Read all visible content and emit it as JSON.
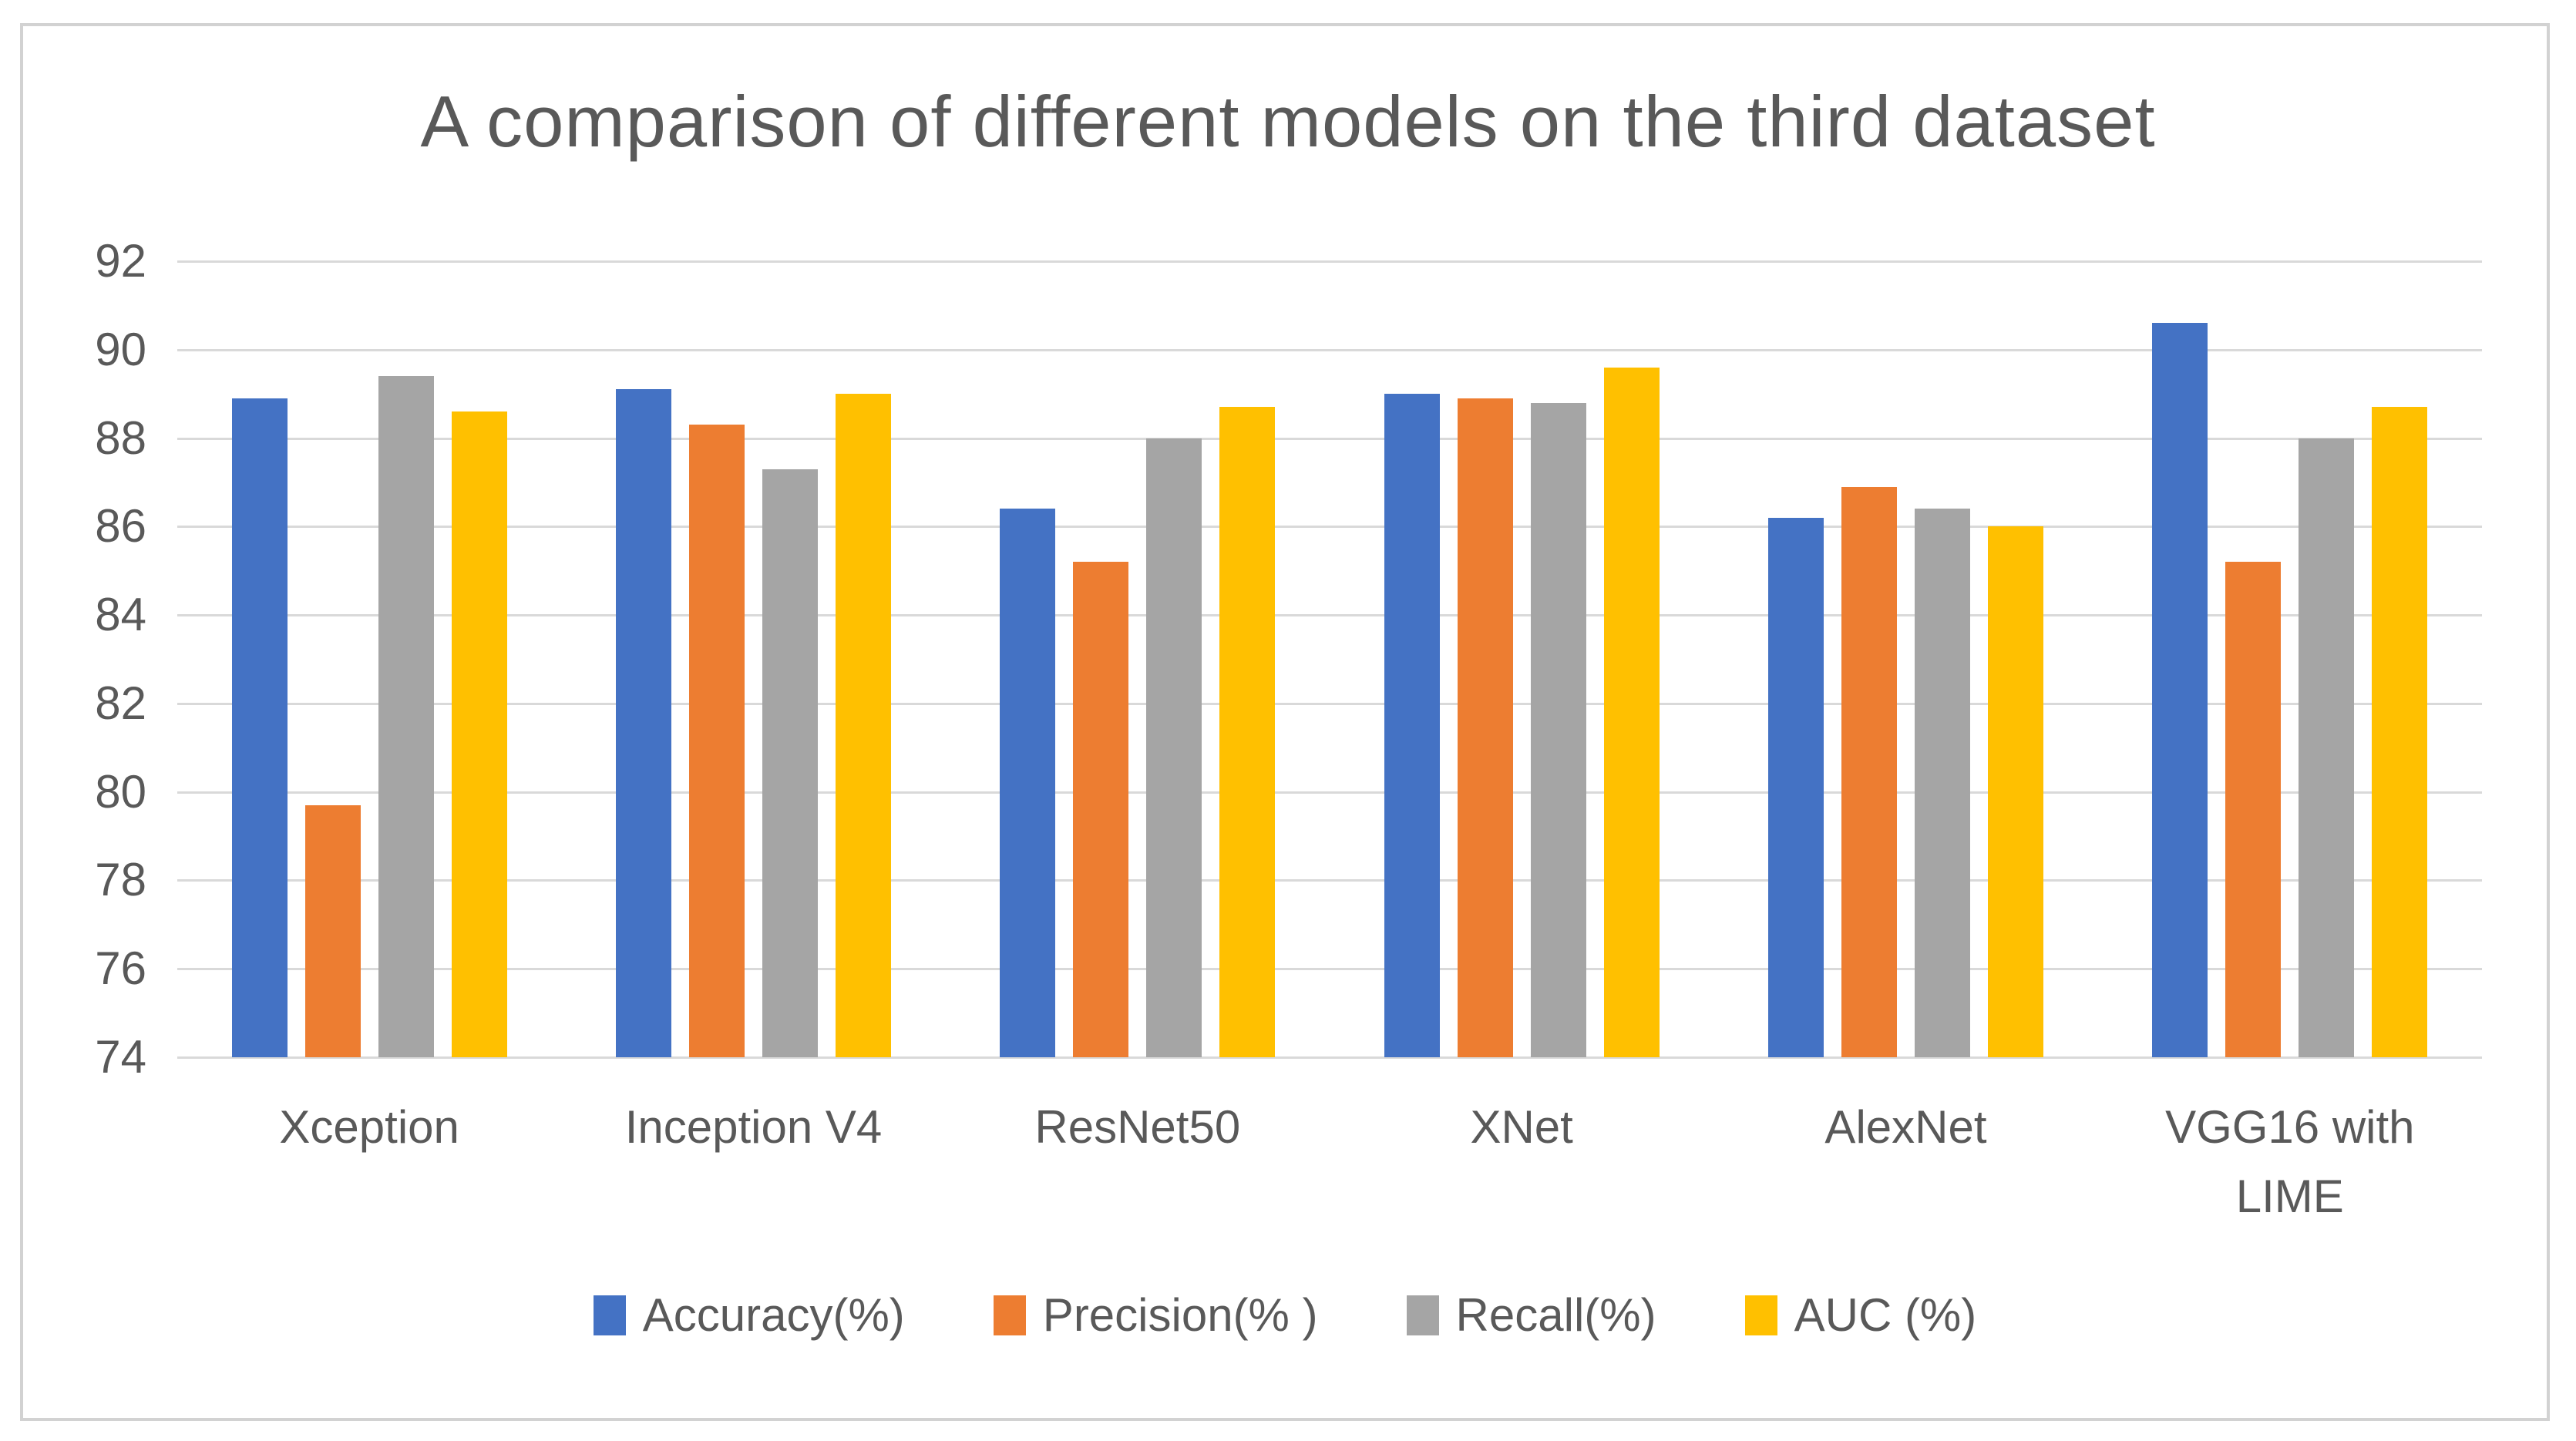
{
  "figure": {
    "title": "A comparison of different models on the third dataset"
  },
  "colors": {
    "accuracy_blue": "#4472C4",
    "precision_orange": "#ED7D31",
    "recall_gray": "#A5A5A5",
    "auc_yellow": "#FFC000",
    "text_gray": "#595959",
    "gridline_gray": "#D9D9D9",
    "frame_border_gray": "#D2D2D2",
    "background": "#FFFFFF"
  },
  "chart_data": {
    "type": "bar",
    "title": "A comparison of different models on the third dataset",
    "categories": [
      "Xception",
      "Inception V4",
      "ResNet50",
      "XNet",
      "AlexNet",
      "VGG16 with LIME"
    ],
    "series": [
      {
        "name": "Accuracy(%)",
        "color": "#4472C4",
        "values": [
          88.9,
          89.1,
          86.4,
          89.0,
          86.2,
          90.6
        ]
      },
      {
        "name": "Precision(% )",
        "color": "#ED7D31",
        "values": [
          79.7,
          88.3,
          85.2,
          88.9,
          86.9,
          85.2
        ]
      },
      {
        "name": "Recall(%)",
        "color": "#A5A5A5",
        "values": [
          89.4,
          87.3,
          88.0,
          88.8,
          86.4,
          88.0
        ]
      },
      {
        "name": "AUC (%)",
        "color": "#FFC000",
        "values": [
          88.6,
          89.0,
          88.7,
          89.6,
          86.0,
          88.7
        ]
      }
    ],
    "ylim": [
      74,
      92
    ],
    "yticks": [
      74,
      76,
      78,
      80,
      82,
      84,
      86,
      88,
      90,
      92
    ],
    "xlabel": "",
    "ylabel": "",
    "grid": "horizontal",
    "legend_position": "bottom"
  }
}
